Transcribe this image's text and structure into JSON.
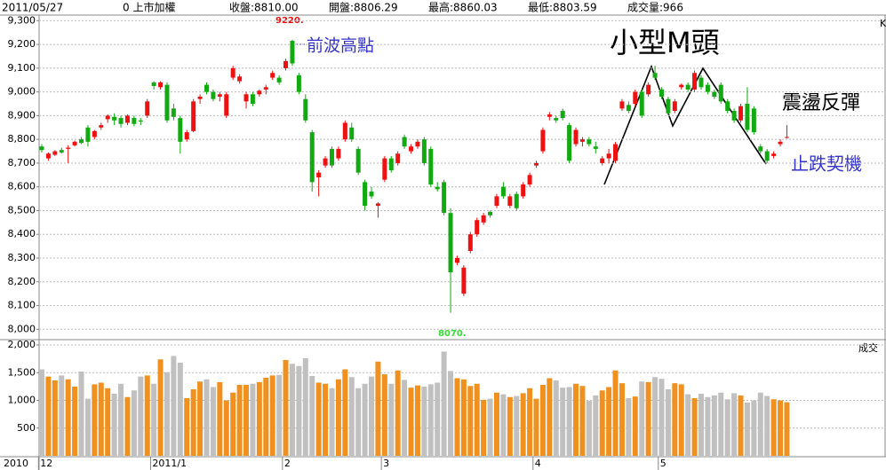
{
  "chart_data": {
    "type": "candlestick",
    "header": [
      "2011/05/27",
      "0 上市加權",
      "收盤:8810.00",
      "開盤:8806.29",
      "最高:8860.03",
      "最低:8803.59",
      "成交量:966"
    ],
    "price_label": "K",
    "volume_label": "成交",
    "year_label": "2010",
    "annotations": [
      "9220.",
      "8070.",
      "前波高點",
      "小型M頭",
      "震盪反彈",
      "止跌契機"
    ],
    "categories": [
      "12",
      null,
      null,
      null,
      null,
      null,
      null,
      null,
      null,
      null,
      null,
      null,
      null,
      null,
      null,
      null,
      null,
      "2011/1",
      null,
      null,
      null,
      null,
      null,
      null,
      null,
      null,
      null,
      null,
      null,
      null,
      null,
      null,
      null,
      null,
      null,
      null,
      null,
      "2",
      null,
      null,
      null,
      null,
      null,
      null,
      null,
      null,
      null,
      null,
      null,
      null,
      null,
      null,
      "3",
      null,
      null,
      null,
      null,
      null,
      null,
      null,
      null,
      null,
      null,
      null,
      null,
      null,
      null,
      null,
      null,
      null,
      null,
      null,
      null,
      null,
      null,
      "4",
      null,
      null,
      null,
      null,
      null,
      null,
      null,
      null,
      null,
      null,
      null,
      null,
      null,
      null,
      null,
      null,
      null,
      null,
      "5",
      null,
      null,
      null,
      null,
      null,
      null,
      null,
      null,
      null,
      null,
      null,
      null,
      null,
      null,
      null,
      null,
      null,
      null,
      null
    ],
    "open": [
      8770,
      8720,
      8735,
      8755,
      8760,
      8775,
      8800,
      8850,
      8810,
      8850,
      8885,
      8895,
      8890,
      8870,
      8890,
      8880,
      8900,
      9040,
      9020,
      9030,
      8930,
      8890,
      8800,
      8835,
      8970,
      9030,
      9000,
      8980,
      8900,
      9060,
      9045,
      8960,
      8990,
      8990,
      9010,
      9060,
      9060,
      9100,
      9215,
      9070,
      8970,
      8830,
      8640,
      8690,
      8760,
      8720,
      8800,
      8850,
      8760,
      8620,
      8580,
      8520,
      8630,
      8720,
      8700,
      8810,
      8750,
      8770,
      8800,
      8760,
      8600,
      8620,
      8490,
      8280,
      8150,
      8330,
      8400,
      8450,
      8495,
      8520,
      8600,
      8520,
      8570,
      8560,
      8610,
      8690,
      8750,
      8895,
      8890,
      8920,
      8860,
      8780,
      8790,
      8800,
      8770,
      8700,
      8720,
      8710,
      8930,
      8945,
      8950,
      9000,
      8990,
      9080,
      9010,
      8970,
      8920,
      9020,
      9030,
      9010,
      9060,
      9030,
      9000,
      9030,
      8960,
      8920,
      8880,
      8950,
      8930,
      8770,
      8750,
      8730,
      8780,
      8806.29
    ],
    "high": [
      8780,
      8745,
      8755,
      8765,
      8775,
      8795,
      8810,
      8860,
      8840,
      8870,
      8905,
      8910,
      8900,
      8905,
      8900,
      8890,
      8970,
      9045,
      9045,
      9040,
      8950,
      8900,
      8840,
      8970,
      8990,
      9040,
      9010,
      9000,
      9000,
      9110,
      9075,
      9000,
      9000,
      9010,
      9030,
      9090,
      9070,
      9140,
      9220,
      9080,
      8990,
      8840,
      8670,
      8730,
      8770,
      8770,
      8880,
      8870,
      8770,
      8630,
      8600,
      8535,
      8730,
      8730,
      8750,
      8820,
      8780,
      8800,
      8810,
      8770,
      8620,
      8630,
      8510,
      8310,
      8270,
      8410,
      8470,
      8490,
      8500,
      8570,
      8620,
      8570,
      8580,
      8620,
      8660,
      8710,
      8850,
      8915,
      8900,
      8930,
      8870,
      8850,
      8810,
      8810,
      8790,
      8730,
      8760,
      8790,
      8970,
      8960,
      9010,
      9010,
      9040,
      9110,
      9020,
      8980,
      8970,
      9035,
      9040,
      9090,
      9070,
      9040,
      9010,
      9040,
      8970,
      8930,
      8950,
      9020,
      8940,
      8780,
      8760,
      8750,
      8800,
      8860.03
    ],
    "low": [
      8745,
      8710,
      8730,
      8740,
      8700,
      8770,
      8780,
      8770,
      8800,
      8840,
      8870,
      8860,
      8850,
      8860,
      8855,
      8860,
      8890,
      9010,
      9010,
      8870,
      8880,
      8740,
      8790,
      8830,
      8950,
      8990,
      8960,
      8960,
      8890,
      9050,
      9035,
      8930,
      8940,
      8980,
      8990,
      9050,
      9030,
      9090,
      9110,
      8990,
      8870,
      8580,
      8560,
      8680,
      8680,
      8710,
      8790,
      8790,
      8650,
      8500,
      8550,
      8470,
      8620,
      8660,
      8690,
      8760,
      8740,
      8760,
      8690,
      8600,
      8580,
      8480,
      8070,
      8270,
      8140,
      8320,
      8390,
      8440,
      8470,
      8510,
      8550,
      8510,
      8500,
      8550,
      8600,
      8680,
      8740,
      8880,
      8870,
      8880,
      8700,
      8770,
      8770,
      8770,
      8740,
      8690,
      8700,
      8700,
      8920,
      8910,
      8940,
      8890,
      8980,
      9050,
      8970,
      8900,
      8910,
      9010,
      9000,
      9000,
      9010,
      8990,
      8970,
      8950,
      8910,
      8870,
      8870,
      8830,
      8820,
      8740,
      8700,
      8720,
      8770,
      8803.59
    ],
    "close": [
      8755,
      8740,
      8750,
      8745,
      8765,
      8790,
      8785,
      8790,
      8835,
      8860,
      8900,
      8880,
      8865,
      8900,
      8865,
      8875,
      8960,
      9025,
      9040,
      8880,
      8895,
      8790,
      8830,
      8960,
      8980,
      9000,
      8970,
      8990,
      8990,
      9100,
      9065,
      8990,
      8950,
      9005,
      9020,
      9080,
      9040,
      9130,
      9120,
      9000,
      8880,
      8620,
      8660,
      8720,
      8690,
      8760,
      8870,
      8800,
      8660,
      8520,
      8560,
      8530,
      8720,
      8670,
      8740,
      8770,
      8770,
      8790,
      8700,
      8610,
      8590,
      8490,
      8240,
      8300,
      8260,
      8400,
      8460,
      8480,
      8480,
      8560,
      8560,
      8560,
      8510,
      8610,
      8650,
      8700,
      8840,
      8905,
      8880,
      8890,
      8710,
      8840,
      8800,
      8780,
      8760,
      8720,
      8740,
      8780,
      8960,
      8920,
      9000,
      8900,
      9030,
      9060,
      8980,
      8910,
      8960,
      9030,
      9010,
      9080,
      9020,
      9000,
      8980,
      8960,
      8920,
      8880,
      8940,
      8840,
      8830,
      8750,
      8710,
      8740,
      8790,
      8810
    ],
    "volume": [
      1560,
      1430,
      1360,
      1450,
      1380,
      1250,
      1520,
      1030,
      1290,
      1320,
      1220,
      1120,
      1300,
      1060,
      1180,
      1430,
      1450,
      1300,
      1740,
      1510,
      1800,
      1680,
      1040,
      1200,
      1340,
      1380,
      1240,
      1330,
      1000,
      1140,
      1280,
      1280,
      1300,
      1330,
      1410,
      1450,
      1460,
      1730,
      1660,
      1620,
      1760,
      1440,
      1320,
      1300,
      1220,
      1380,
      1560,
      1420,
      1220,
      1300,
      1430,
      1700,
      1470,
      1300,
      1540,
      1370,
      1230,
      1270,
      1250,
      1290,
      1320,
      1880,
      1530,
      1400,
      1380,
      1260,
      1300,
      1010,
      1030,
      1140,
      1110,
      1060,
      1080,
      1130,
      1220,
      1030,
      1280,
      1400,
      1360,
      1230,
      1240,
      1300,
      1260,
      990,
      1090,
      1180,
      1240,
      1540,
      1310,
      1040,
      1070,
      1340,
      1330,
      1420,
      1390,
      1200,
      1310,
      1290,
      1110,
      1040,
      1120,
      1060,
      1090,
      1140,
      1020,
      1130,
      1090,
      960,
      1000,
      1140,
      1080,
      1020,
      1000,
      966
    ],
    "ylim": [
      7960,
      9320
    ],
    "yticks": [
      {
        "value": 8000,
        "label": "8,000"
      },
      {
        "value": 8100,
        "label": "8,100"
      },
      {
        "value": 8200,
        "label": "8,200"
      },
      {
        "value": 8300,
        "label": "8,300"
      },
      {
        "value": 8400,
        "label": "8,400"
      },
      {
        "value": 8500,
        "label": "8,500"
      },
      {
        "value": 8600,
        "label": "8,600"
      },
      {
        "value": 8700,
        "label": "8,700"
      },
      {
        "value": 8800,
        "label": "8,800"
      },
      {
        "value": 8900,
        "label": "8,900"
      },
      {
        "value": 9000,
        "label": "9,000"
      },
      {
        "value": 9100,
        "label": "9,100"
      },
      {
        "value": 9200,
        "label": "9,200"
      },
      {
        "value": 9300,
        "label": "9,300"
      }
    ],
    "volume_ylim": [
      0,
      2080
    ],
    "volume_yticks": [
      500,
      {
        "value": 1000,
        "label": "1,000"
      },
      {
        "value": 1500,
        "label": "1,500"
      },
      {
        "value": 2000,
        "label": "2,000"
      }
    ],
    "up_color": "#ee1111",
    "down_color": "#11aa11",
    "volume_up_color": "#f0901e",
    "volume_down_color": "#c0c0c0",
    "grid": true
  }
}
